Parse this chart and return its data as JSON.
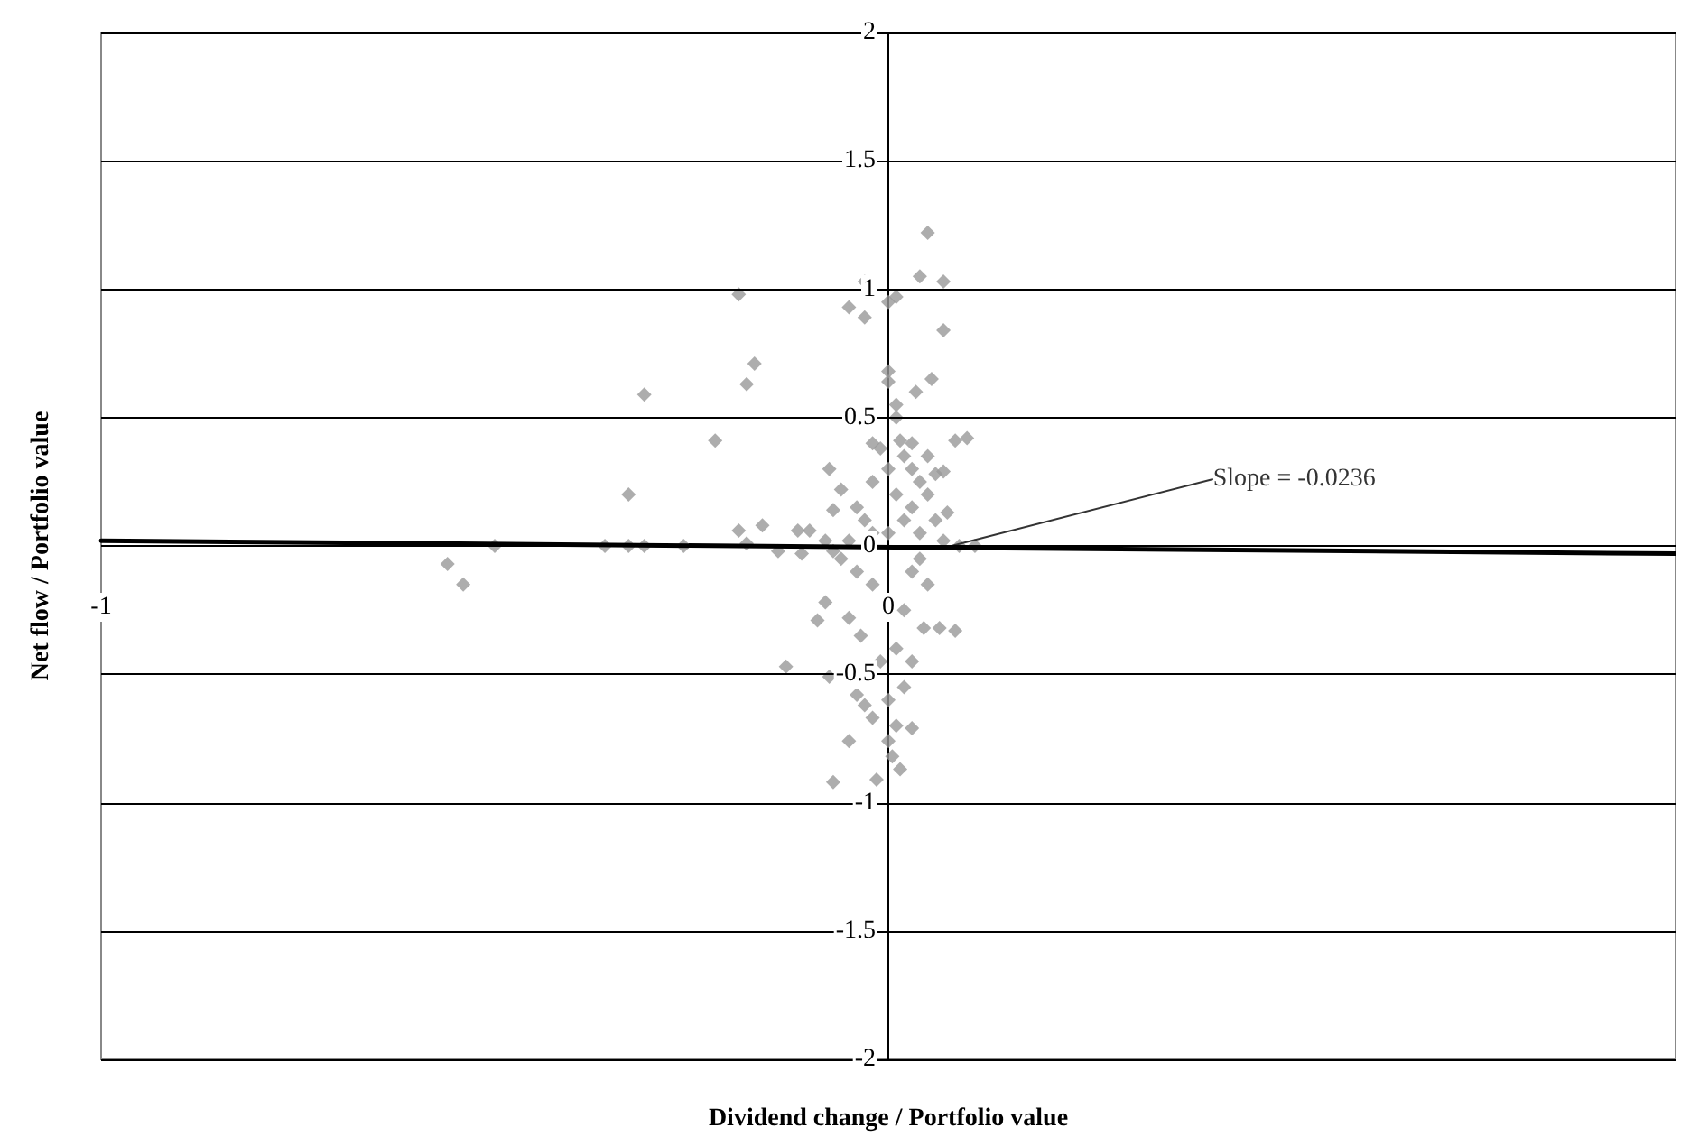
{
  "chart_data": {
    "type": "scatter",
    "xlabel": "Dividend change / Portfolio value",
    "ylabel": "Net flow / Portfolio value",
    "xlim": [
      -1,
      1
    ],
    "xticks": [
      -1,
      0
    ],
    "ylim": [
      -2,
      2
    ],
    "yticks": [
      -2,
      -1.5,
      -1,
      -0.5,
      0,
      0.5,
      1,
      1.5,
      2
    ],
    "grid": "y",
    "annotations": [
      {
        "text": "Slope = -0.0236",
        "x": 0.08,
        "y": 0.0
      }
    ],
    "series": [
      {
        "color": "#999999",
        "marker": "diamond",
        "x": [
          0.05,
          -0.03,
          0.04,
          0.07,
          -0.19,
          -0.05,
          -0.03,
          0.0,
          0.01,
          0.07,
          -0.17,
          -0.18,
          -0.31,
          0.0,
          0.0,
          0.055,
          0.035,
          0.01,
          0.01,
          -0.22,
          0.085,
          0.1,
          -0.02,
          0.015,
          -0.075,
          0.07,
          -0.33,
          -0.06,
          0.075,
          -0.07,
          -0.16,
          -0.19,
          -0.115,
          -0.5,
          -0.36,
          -0.33,
          -0.31,
          -0.26,
          -0.56,
          -0.54,
          -0.14,
          -0.11,
          -0.18,
          0.11,
          0.09,
          0.02,
          0.03,
          0.04,
          0.05,
          0.01,
          0.03,
          0.06,
          0.02,
          0.0,
          -0.02,
          0.04,
          -0.04,
          -0.02,
          0.05,
          0.06,
          -0.03,
          0.07,
          -0.05,
          -0.08,
          0.0,
          -0.01,
          0.03,
          -0.08,
          -0.09,
          0.045,
          0.065,
          0.085,
          -0.05,
          -0.035,
          -0.13,
          -0.075,
          -0.04,
          -0.02,
          0.03,
          -0.05,
          0.0,
          0.015,
          -0.015,
          -0.07,
          0.005,
          0.01,
          -0.01,
          0.02,
          0.0,
          0.03,
          0.01,
          -0.03,
          0.02,
          -0.02,
          0.03,
          0.04,
          -0.06,
          0.05,
          -0.04,
          -0.1,
          -0.07
        ],
        "values": [
          1.22,
          1.03,
          1.05,
          1.03,
          0.98,
          0.93,
          0.89,
          0.95,
          0.97,
          0.84,
          0.71,
          0.63,
          0.59,
          0.68,
          0.64,
          0.65,
          0.6,
          0.55,
          0.5,
          0.41,
          0.41,
          0.42,
          0.4,
          0.41,
          0.3,
          0.29,
          0.2,
          0.22,
          0.13,
          0.14,
          0.08,
          0.06,
          0.06,
          0.0,
          0.0,
          0.0,
          0.0,
          0.0,
          -0.07,
          -0.15,
          -0.02,
          -0.03,
          0.01,
          0.0,
          0.0,
          0.35,
          0.3,
          0.25,
          0.2,
          0.2,
          0.15,
          0.1,
          0.1,
          0.05,
          0.05,
          0.05,
          0.15,
          0.25,
          0.35,
          0.28,
          0.1,
          0.02,
          0.02,
          0.02,
          0.3,
          0.38,
          0.4,
          -0.22,
          -0.29,
          -0.32,
          -0.32,
          -0.33,
          -0.28,
          -0.35,
          -0.47,
          -0.51,
          -0.58,
          -0.67,
          -0.71,
          -0.76,
          -0.76,
          -0.87,
          -0.91,
          -0.92,
          -0.82,
          -0.4,
          -0.45,
          -0.55,
          -0.6,
          -0.45,
          -0.7,
          -0.62,
          -0.25,
          -0.15,
          -0.1,
          -0.05,
          -0.05,
          -0.15,
          -0.1,
          0.06,
          -0.02
        ]
      },
      {
        "type": "line",
        "color": "#000000",
        "x": [
          -1,
          1
        ],
        "values": [
          0.02,
          -0.03
        ]
      }
    ]
  }
}
